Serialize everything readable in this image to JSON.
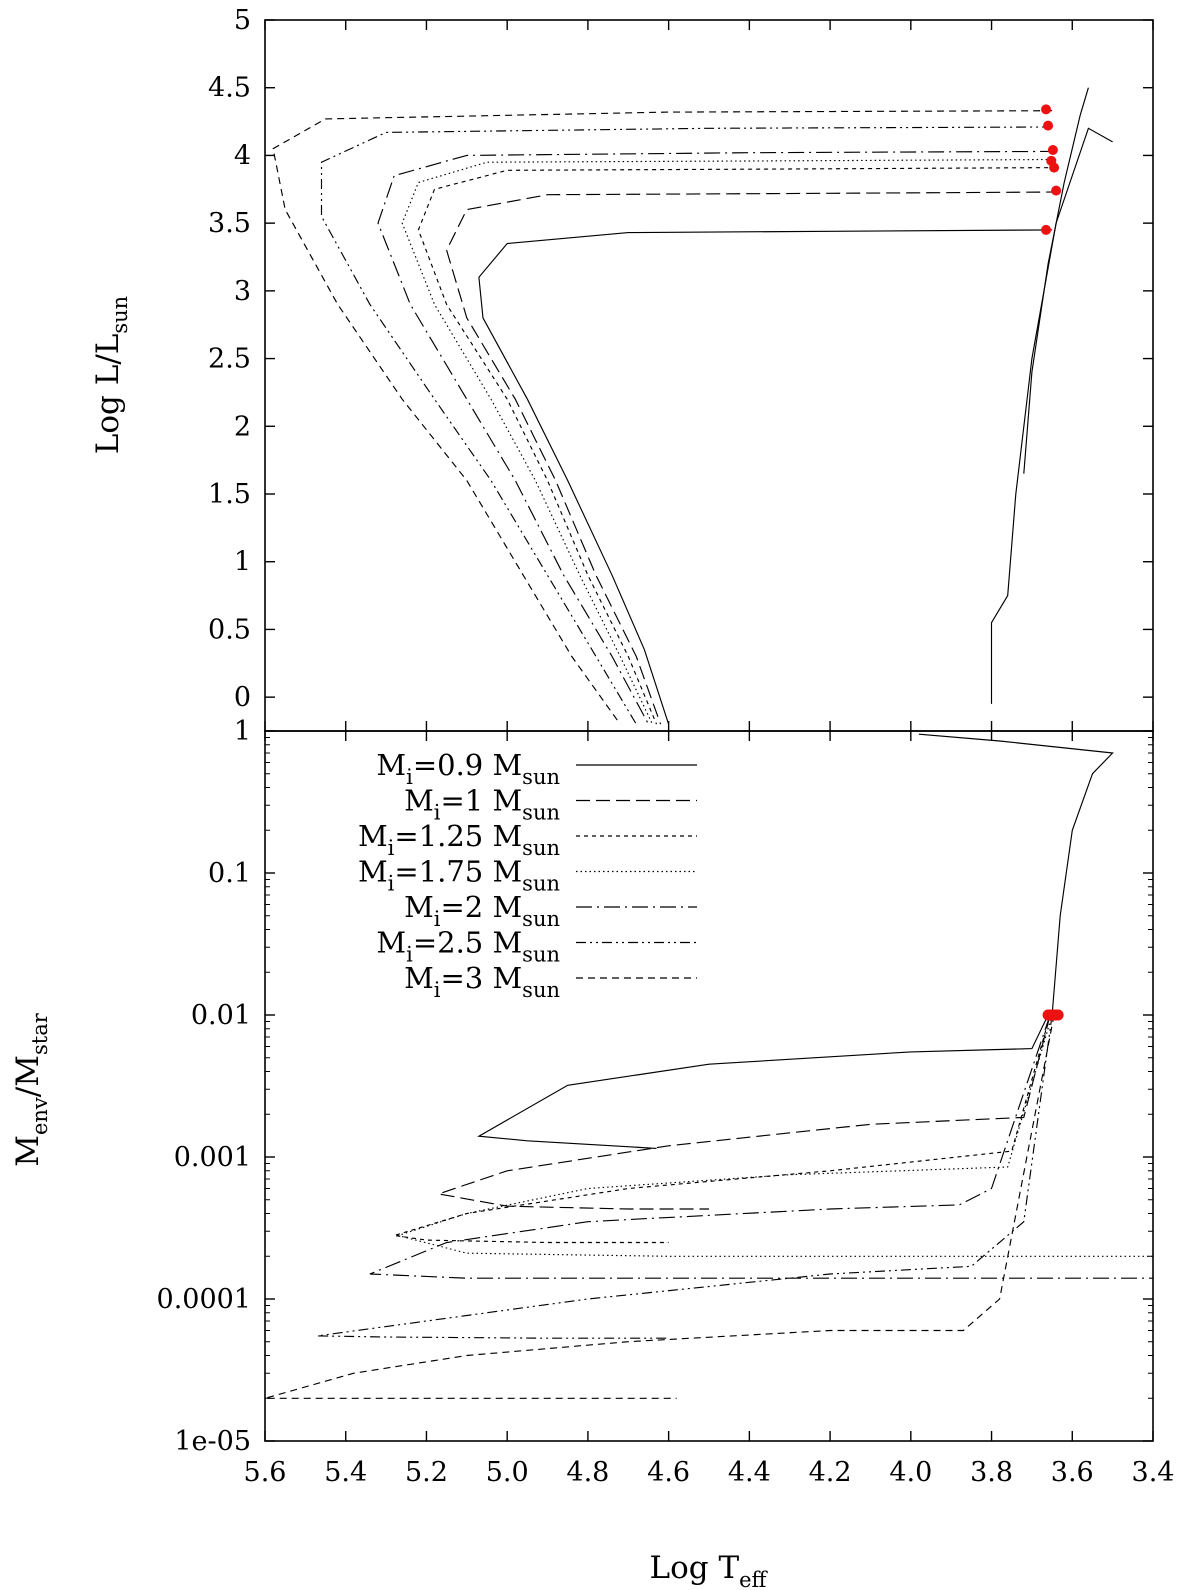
{
  "chart_data": [
    {
      "panel": "top",
      "type": "line",
      "title": "",
      "ylabel": {
        "main": "Log L/L",
        "sub": "sun"
      },
      "xlabel": "",
      "xlim": [
        5.6,
        3.4
      ],
      "ylim": [
        -0.25,
        5.0
      ],
      "xreversed": true,
      "y_tick_labels": [
        "0",
        "0.5",
        "1",
        "1.5",
        "2",
        "2.5",
        "3",
        "3.5",
        "4",
        "4.5",
        "5"
      ],
      "y_tick_values": [
        0,
        0.5,
        1,
        1.5,
        2,
        2.5,
        3,
        3.5,
        4,
        4.5,
        5
      ],
      "series": [
        {
          "name": "Mi=0.9 Msun",
          "dash": "",
          "plateau": 3.45,
          "points": [
            [
              3.65,
              3.45
            ],
            [
              4.2,
              3.44
            ],
            [
              4.7,
              3.43
            ],
            [
              5.0,
              3.35
            ],
            [
              5.07,
              3.1
            ],
            [
              5.06,
              2.8
            ],
            [
              4.95,
              2.2
            ],
            [
              4.85,
              1.6
            ],
            [
              4.74,
              0.9
            ],
            [
              4.66,
              0.35
            ],
            [
              4.6,
              -0.2
            ]
          ]
        },
        {
          "name": "Mi=1 Msun",
          "dash": "14,6",
          "plateau": 3.73,
          "points": [
            [
              3.63,
              3.73
            ],
            [
              4.2,
              3.72
            ],
            [
              4.9,
              3.71
            ],
            [
              5.1,
              3.6
            ],
            [
              5.15,
              3.3
            ],
            [
              5.1,
              2.8
            ],
            [
              4.98,
              2.2
            ],
            [
              4.88,
              1.6
            ],
            [
              4.78,
              0.9
            ],
            [
              4.68,
              0.3
            ],
            [
              4.62,
              -0.2
            ]
          ]
        },
        {
          "name": "Mi=1.25 Msun",
          "dash": "4,4",
          "plateau": 3.91,
          "points": [
            [
              3.64,
              3.91
            ],
            [
              4.3,
              3.9
            ],
            [
              5.0,
              3.89
            ],
            [
              5.18,
              3.75
            ],
            [
              5.22,
              3.45
            ],
            [
              5.15,
              2.9
            ],
            [
              5.0,
              2.2
            ],
            [
              4.9,
              1.6
            ],
            [
              4.8,
              0.9
            ],
            [
              4.7,
              0.3
            ],
            [
              4.63,
              -0.2
            ]
          ]
        },
        {
          "name": "Mi=1.75 Msun",
          "dash": "1.5,3",
          "plateau": 3.97,
          "points": [
            [
              3.64,
              3.97
            ],
            [
              4.3,
              3.96
            ],
            [
              5.05,
              3.95
            ],
            [
              5.22,
              3.8
            ],
            [
              5.26,
              3.5
            ],
            [
              5.18,
              2.9
            ],
            [
              5.04,
              2.2
            ],
            [
              4.93,
              1.6
            ],
            [
              4.82,
              0.9
            ],
            [
              4.72,
              0.3
            ],
            [
              4.64,
              -0.2
            ]
          ]
        },
        {
          "name": "Mi=2 Msun",
          "dash": "16,5,2,5",
          "plateau": 4.03,
          "points": [
            [
              3.64,
              4.03
            ],
            [
              4.4,
              4.02
            ],
            [
              5.1,
              4.0
            ],
            [
              5.28,
              3.85
            ],
            [
              5.32,
              3.5
            ],
            [
              5.24,
              2.9
            ],
            [
              5.1,
              2.2
            ],
            [
              4.98,
              1.6
            ],
            [
              4.86,
              0.9
            ],
            [
              4.74,
              0.3
            ],
            [
              4.65,
              -0.2
            ]
          ]
        },
        {
          "name": "Mi=2.5 Msun",
          "dash": "10,4,2,4,2,4",
          "plateau": 4.21,
          "points": [
            [
              3.65,
              4.21
            ],
            [
              4.5,
              4.2
            ],
            [
              5.3,
              4.17
            ],
            [
              5.46,
              3.95
            ],
            [
              5.46,
              3.55
            ],
            [
              5.34,
              2.9
            ],
            [
              5.18,
              2.2
            ],
            [
              5.04,
              1.6
            ],
            [
              4.9,
              0.9
            ],
            [
              4.78,
              0.3
            ],
            [
              4.68,
              -0.2
            ]
          ]
        },
        {
          "name": "Mi=3 Msun",
          "dash": "7,5",
          "plateau": 4.33,
          "points": [
            [
              3.65,
              4.33
            ],
            [
              4.6,
              4.32
            ],
            [
              5.45,
              4.27
            ],
            [
              5.58,
              4.05
            ],
            [
              5.55,
              3.6
            ],
            [
              5.42,
              2.9
            ],
            [
              5.26,
              2.2
            ],
            [
              5.1,
              1.6
            ],
            [
              4.96,
              0.9
            ],
            [
              4.84,
              0.3
            ],
            [
              4.72,
              -0.2
            ]
          ]
        }
      ],
      "markers_red": [
        [
          3.665,
          4.34
        ],
        [
          3.66,
          4.22
        ],
        [
          3.648,
          4.04
        ],
        [
          3.652,
          3.96
        ],
        [
          3.645,
          3.91
        ],
        [
          3.64,
          3.74
        ],
        [
          3.665,
          3.45
        ]
      ]
    },
    {
      "panel": "bottom",
      "type": "line",
      "yscale": "log",
      "ylabel": {
        "main": "M",
        "sub1": "env",
        "mid": "/M",
        "sub2": "star"
      },
      "xlabel": {
        "main": "Log T",
        "sub": "eff"
      },
      "xlim": [
        5.6,
        3.4
      ],
      "ylim": [
        1e-05,
        1
      ],
      "xreversed": true,
      "x_tick_labels": [
        "5.6",
        "5.4",
        "5.2",
        "5.0",
        "4.8",
        "4.6",
        "4.4",
        "4.2",
        "4.0",
        "3.8",
        "3.6",
        "3.4"
      ],
      "x_tick_values": [
        5.6,
        5.4,
        5.2,
        5.0,
        4.8,
        4.6,
        4.4,
        4.2,
        4.0,
        3.8,
        3.6,
        3.4
      ],
      "y_tick_labels": [
        "1e-05",
        "0.0001",
        "0.001",
        "0.01",
        "0.1",
        "1"
      ],
      "y_tick_values": [
        1e-05,
        0.0001,
        0.001,
        0.01,
        0.1,
        1
      ],
      "legend": [
        {
          "pre": "M",
          "sub1": "i",
          "mid": "=0.9 M",
          "sub2": "sun",
          "dash": ""
        },
        {
          "pre": "M",
          "sub1": "i",
          "mid": "=1 M",
          "sub2": "sun",
          "dash": "14,6"
        },
        {
          "pre": "M",
          "sub1": "i",
          "mid": "=1.25 M",
          "sub2": "sun",
          "dash": "4,4"
        },
        {
          "pre": "M",
          "sub1": "i",
          "mid": "=1.75 M",
          "sub2": "sun",
          "dash": "1.5,3"
        },
        {
          "pre": "M",
          "sub1": "i",
          "mid": "=2 M",
          "sub2": "sun",
          "dash": "16,5,2,5"
        },
        {
          "pre": "M",
          "sub1": "i",
          "mid": "=2.5 M",
          "sub2": "sun",
          "dash": "10,4,2,4,2,4"
        },
        {
          "pre": "M",
          "sub1": "i",
          "mid": "=3 M",
          "sub2": "sun",
          "dash": "7,5"
        }
      ],
      "series": [
        {
          "name": "Mi=0.9 Msun",
          "dash": "",
          "points": [
            [
              3.66,
              0.01
            ],
            [
              3.7,
              0.0058
            ],
            [
              4.0,
              0.0055
            ],
            [
              4.5,
              0.0045
            ],
            [
              4.85,
              0.0032
            ],
            [
              5.07,
              0.0014
            ],
            [
              4.95,
              0.0013
            ],
            [
              4.63,
              0.00115
            ]
          ]
        },
        {
          "name": "Mi=1 Msun",
          "dash": "14,6",
          "points": [
            [
              3.655,
              0.01
            ],
            [
              3.72,
              0.0019
            ],
            [
              4.1,
              0.0017
            ],
            [
              4.6,
              0.0012
            ],
            [
              5.0,
              0.0008
            ],
            [
              5.17,
              0.00055
            ],
            [
              5.0,
              0.00045
            ],
            [
              4.7,
              0.00043
            ],
            [
              4.5,
              0.00043
            ]
          ]
        },
        {
          "name": "Mi=1.25 Msun",
          "dash": "4,4",
          "points": [
            [
              3.655,
              0.01
            ],
            [
              3.75,
              0.0011
            ],
            [
              4.2,
              0.0008
            ],
            [
              4.7,
              0.0006
            ],
            [
              5.1,
              0.0004
            ],
            [
              5.28,
              0.00028
            ],
            [
              5.2,
              0.00026
            ],
            [
              4.9,
              0.00025
            ],
            [
              4.6,
              0.00025
            ]
          ]
        },
        {
          "name": "Mi=1.75 Msun",
          "dash": "1.5,3",
          "points": [
            [
              3.65,
              0.01
            ],
            [
              3.76,
              0.00085
            ],
            [
              4.3,
              0.00075
            ],
            [
              4.8,
              0.0006
            ],
            [
              5.1,
              0.0004
            ],
            [
              5.27,
              0.00028
            ],
            [
              5.1,
              0.00021
            ],
            [
              4.6,
              0.0002
            ],
            [
              3.4,
              0.0002
            ]
          ]
        },
        {
          "name": "Mi=2 Msun",
          "dash": "16,5,2,5",
          "points": [
            [
              3.655,
              0.01
            ],
            [
              3.8,
              0.0006
            ],
            [
              3.88,
              0.00046
            ],
            [
              4.2,
              0.00043
            ],
            [
              4.8,
              0.00035
            ],
            [
              5.15,
              0.00025
            ],
            [
              5.34,
              0.00015
            ],
            [
              5.1,
              0.00014
            ],
            [
              3.4,
              0.00014
            ]
          ]
        },
        {
          "name": "Mi=2.5 Msun",
          "dash": "10,4,2,4,2,4",
          "points": [
            [
              3.65,
              0.01
            ],
            [
              3.72,
              0.00035
            ],
            [
              3.85,
              0.00017
            ],
            [
              4.2,
              0.00015
            ],
            [
              4.8,
              0.0001
            ],
            [
              5.2,
              7e-05
            ],
            [
              5.47,
              5.5e-05
            ],
            [
              5.3,
              5.4e-05
            ],
            [
              4.9,
              5.3e-05
            ],
            [
              4.6,
              5.3e-05
            ]
          ]
        },
        {
          "name": "Mi=3 Msun",
          "dash": "7,5",
          "points": [
            [
              3.645,
              0.01
            ],
            [
              3.78,
              0.0001
            ],
            [
              3.87,
              6e-05
            ],
            [
              4.2,
              6e-05
            ],
            [
              4.7,
              5e-05
            ],
            [
              5.1,
              4e-05
            ],
            [
              5.38,
              3e-05
            ],
            [
              5.6,
              2e-05
            ],
            [
              4.58,
              2e-05
            ]
          ]
        }
      ],
      "markers_red": [
        [
          3.66,
          0.01
        ],
        [
          3.655,
          0.01
        ],
        [
          3.65,
          0.01
        ],
        [
          3.645,
          0.01
        ],
        [
          3.64,
          0.01
        ],
        [
          3.635,
          0.01
        ]
      ]
    }
  ]
}
